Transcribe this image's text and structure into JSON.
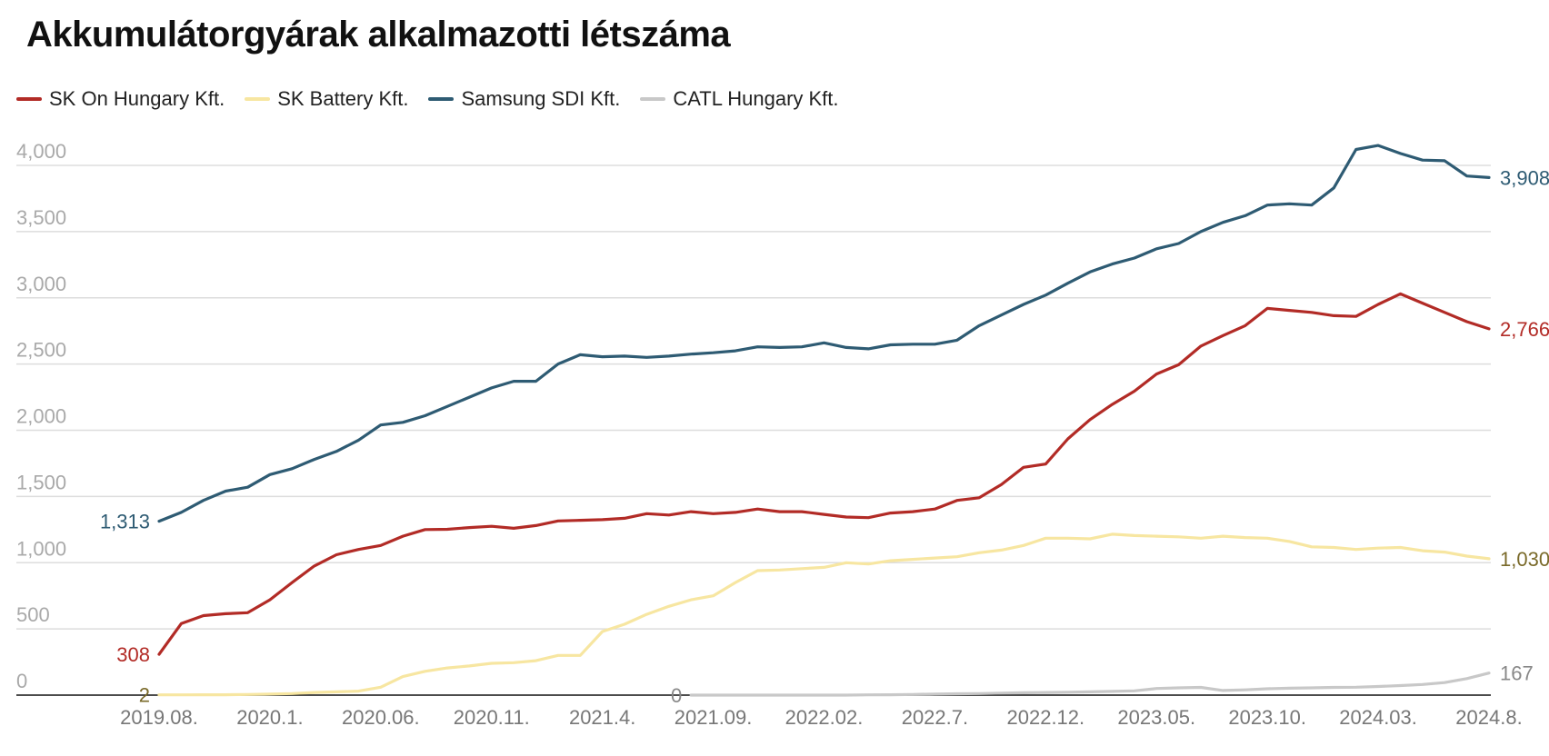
{
  "title": "Akkumulátorgyárak alkalmazotti létszáma",
  "chart_data": {
    "type": "line",
    "title": "Akkumulátorgyárak alkalmazotti létszáma",
    "xlabel": "",
    "ylabel": "",
    "ylim": [
      0,
      4000
    ],
    "y_ticks": [
      0,
      500,
      1000,
      1500,
      2000,
      2500,
      3000,
      3500,
      4000
    ],
    "y_tick_labels": [
      "0",
      "500",
      "1,000",
      "1,500",
      "2,000",
      "2,500",
      "3,000",
      "3,500",
      "4,000"
    ],
    "grid": true,
    "legend_position": "top-left",
    "x": [
      "2019.08.",
      "2019.09.",
      "2019.10.",
      "2019.11.",
      "2019.12.",
      "2020.1.",
      "2020.02.",
      "2020.03.",
      "2020.04.",
      "2020.05.",
      "2020.06.",
      "2020.07.",
      "2020.08.",
      "2020.09.",
      "2020.10.",
      "2020.11.",
      "2020.12.",
      "2021.01.",
      "2021.02.",
      "2021.03.",
      "2021.4.",
      "2021.05.",
      "2021.06.",
      "2021.07.",
      "2021.08.",
      "2021.09.",
      "2021.10.",
      "2021.11.",
      "2021.12.",
      "2022.01.",
      "2022.02.",
      "2022.03.",
      "2022.04.",
      "2022.05.",
      "2022.06.",
      "2022.7.",
      "2022.08.",
      "2022.09.",
      "2022.10.",
      "2022.11.",
      "2022.12.",
      "2023.01.",
      "2023.02.",
      "2023.03.",
      "2023.04.",
      "2023.05.",
      "2023.06.",
      "2023.07.",
      "2023.08.",
      "2023.09.",
      "2023.10.",
      "2023.11.",
      "2023.12.",
      "2024.01.",
      "2024.02.",
      "2024.03.",
      "2024.04.",
      "2024.05.",
      "2024.06.",
      "2024.07.",
      "2024.8."
    ],
    "x_tick_labels": [
      "2019.08.",
      "2020.1.",
      "2020.06.",
      "2020.11.",
      "2021.4.",
      "2021.09.",
      "2022.02.",
      "2022.7.",
      "2022.12.",
      "2023.05.",
      "2023.10.",
      "2024.03.",
      "2024.8."
    ],
    "series": [
      {
        "name": "SK On Hungary Kft.",
        "color": "#b22b26",
        "start_label": "308",
        "end_label": "2,766",
        "values": [
          308,
          540,
          600,
          615,
          622,
          720,
          850,
          975,
          1060,
          1100,
          1130,
          1200,
          1250,
          1252,
          1265,
          1275,
          1260,
          1280,
          1315,
          1320,
          1325,
          1335,
          1370,
          1360,
          1385,
          1370,
          1380,
          1405,
          1385,
          1385,
          1365,
          1345,
          1340,
          1375,
          1385,
          1405,
          1470,
          1490,
          1590,
          1720,
          1745,
          1935,
          2080,
          2195,
          2295,
          2425,
          2495,
          2635,
          2715,
          2790,
          2920,
          2905,
          2890,
          2865,
          2860,
          2950,
          3030,
          2960,
          2890,
          2820,
          2766
        ]
      },
      {
        "name": "SK Battery Kft.",
        "color": "#f7e6a1",
        "start_label": "2",
        "end_label": "1,030",
        "values": [
          2,
          2,
          3,
          3,
          5,
          8,
          12,
          20,
          25,
          30,
          60,
          140,
          180,
          205,
          220,
          240,
          245,
          260,
          300,
          300,
          480,
          535,
          610,
          670,
          720,
          750,
          850,
          940,
          945,
          955,
          965,
          1000,
          990,
          1015,
          1025,
          1035,
          1045,
          1075,
          1095,
          1130,
          1185,
          1185,
          1180,
          1215,
          1205,
          1200,
          1195,
          1185,
          1200,
          1190,
          1185,
          1160,
          1120,
          1115,
          1100,
          1110,
          1115,
          1090,
          1080,
          1050,
          1030
        ]
      },
      {
        "name": "Samsung SDI Kft.",
        "color": "#2e5b73",
        "start_label": "1,313",
        "end_label": "3,908",
        "values": [
          1313,
          1380,
          1470,
          1540,
          1570,
          1665,
          1710,
          1780,
          1840,
          1925,
          2040,
          2060,
          2110,
          2180,
          2250,
          2320,
          2370,
          2370,
          2500,
          2570,
          2555,
          2560,
          2550,
          2560,
          2575,
          2585,
          2600,
          2630,
          2625,
          2630,
          2660,
          2625,
          2615,
          2645,
          2650,
          2650,
          2680,
          2790,
          2870,
          2950,
          3020,
          3110,
          3195,
          3255,
          3300,
          3370,
          3410,
          3500,
          3570,
          3620,
          3700,
          3710,
          3700,
          3830,
          4120,
          4150,
          4090,
          4040,
          4035,
          3920,
          3908
        ]
      },
      {
        "name": "CATL Hungary Kft.",
        "color": "#c8c8c8",
        "start_label": "0",
        "end_label": "167",
        "start_index": 24,
        "values": [
          null,
          null,
          null,
          null,
          null,
          null,
          null,
          null,
          null,
          null,
          null,
          null,
          null,
          null,
          null,
          null,
          null,
          null,
          null,
          null,
          null,
          null,
          null,
          null,
          0,
          0,
          0,
          0,
          0,
          0,
          0,
          0,
          2,
          3,
          5,
          8,
          10,
          12,
          15,
          18,
          20,
          22,
          25,
          28,
          32,
          50,
          55,
          58,
          35,
          40,
          48,
          52,
          55,
          58,
          60,
          65,
          72,
          80,
          95,
          125,
          167
        ]
      }
    ]
  }
}
